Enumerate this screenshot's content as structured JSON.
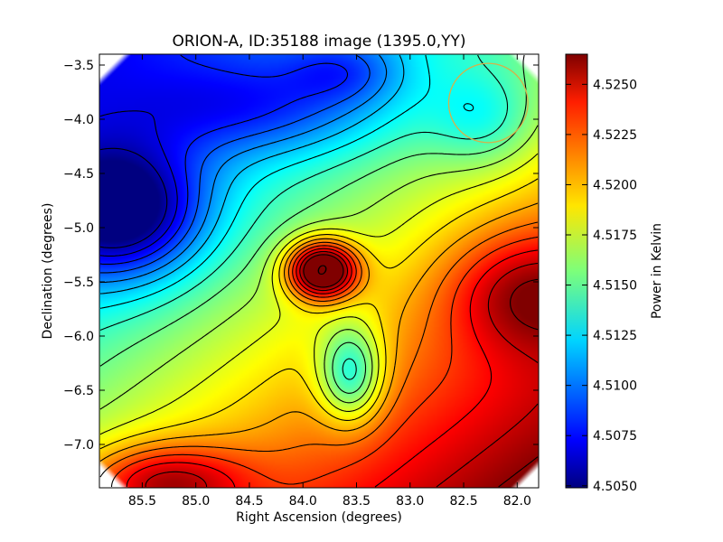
{
  "chart_data": {
    "type": "heatmap",
    "title": "ORION-A, ID:35188 image (1395.0,YY)",
    "xlabel": "Right Ascension (degrees)",
    "ylabel": "Declination (degrees)",
    "xlim": [
      85.9,
      81.8
    ],
    "ylim": [
      -7.4,
      -3.4
    ],
    "x_reversed": true,
    "xticks": [
      "85.5",
      "85.0",
      "84.5",
      "84.0",
      "83.5",
      "83.0",
      "82.5",
      "82.0"
    ],
    "xtick_values": [
      85.5,
      85.0,
      84.5,
      84.0,
      83.5,
      83.0,
      82.5,
      82.0
    ],
    "yticks": [
      "−3.5",
      "−4.0",
      "−4.5",
      "−5.0",
      "−5.5",
      "−6.0",
      "−6.5",
      "−7.0"
    ],
    "ytick_values": [
      -3.5,
      -4.0,
      -4.5,
      -5.0,
      -5.5,
      -6.0,
      -6.5,
      -7.0
    ],
    "colormap": "jet",
    "colorbar": {
      "label": "Power in Kelvin",
      "range": [
        4.5049,
        4.5265
      ],
      "ticks": [
        "4.5050",
        "4.5075",
        "4.5100",
        "4.5125",
        "4.5150",
        "4.5175",
        "4.5200",
        "4.5225",
        "4.5250"
      ],
      "tick_values": [
        4.505,
        4.5075,
        4.51,
        4.5125,
        4.515,
        4.5175,
        4.52,
        4.5225,
        4.525
      ]
    },
    "peak": {
      "ra": 83.82,
      "dec": -5.39,
      "value": 4.5265,
      "marker": "O"
    },
    "features": [
      {
        "kind": "minimum",
        "ra": 85.7,
        "dec": -4.85,
        "value": 4.5052
      },
      {
        "kind": "local-minimum",
        "ra": 83.55,
        "dec": -6.35,
        "value": 4.5112
      },
      {
        "kind": "local-maximum",
        "ra": 82.0,
        "dec": -5.6,
        "value": 4.524
      },
      {
        "kind": "local-maximum",
        "ra": 85.3,
        "dec": -7.3,
        "value": 4.5215
      }
    ],
    "beam_circle": {
      "ra": 82.27,
      "dec": -3.85,
      "radius_deg": 0.37,
      "color": "#d4b24a"
    },
    "contour_color": "#000000"
  }
}
